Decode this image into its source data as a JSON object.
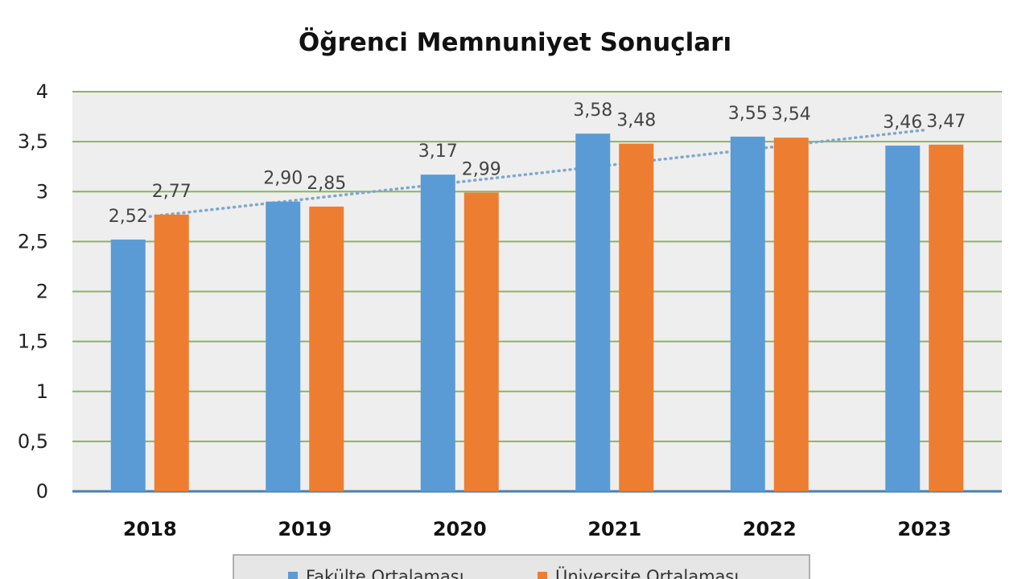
{
  "chart_data": {
    "type": "bar",
    "title": "Öğrenci Memnuniyet Sonuçları",
    "categories": [
      "2018",
      "2019",
      "2020",
      "2021",
      "2022",
      "2023"
    ],
    "series": [
      {
        "name": "Fakülte Ortalaması",
        "color": "#5b9bd5",
        "values": [
          2.52,
          2.9,
          3.17,
          3.58,
          3.55,
          3.46
        ],
        "labels": [
          "2,52",
          "2,90",
          "3,17",
          "3,58",
          "3,55",
          "3,46"
        ]
      },
      {
        "name": "Üniversite Ortalaması",
        "color": "#ed7d31",
        "values": [
          2.77,
          2.85,
          2.99,
          3.48,
          3.54,
          3.47
        ],
        "labels": [
          "2,77",
          "2,85",
          "2,99",
          "3,48",
          "3,54",
          "3,47"
        ]
      }
    ],
    "trendline": {
      "series": "Üniversite Ortalaması",
      "style": "dotted",
      "color": "#7fa7cf"
    },
    "ylim": [
      0,
      4
    ],
    "yticks": [
      0,
      0.5,
      1,
      1.5,
      2,
      2.5,
      3,
      3.5,
      4
    ],
    "ytick_labels": [
      "0",
      "0,5",
      "1",
      "1,5",
      "2",
      "2,5",
      "3",
      "3,5",
      "4"
    ],
    "grid": true,
    "gridline_color": "#8db360",
    "plot_background": "#eeeeee",
    "legend_position": "bottom"
  }
}
